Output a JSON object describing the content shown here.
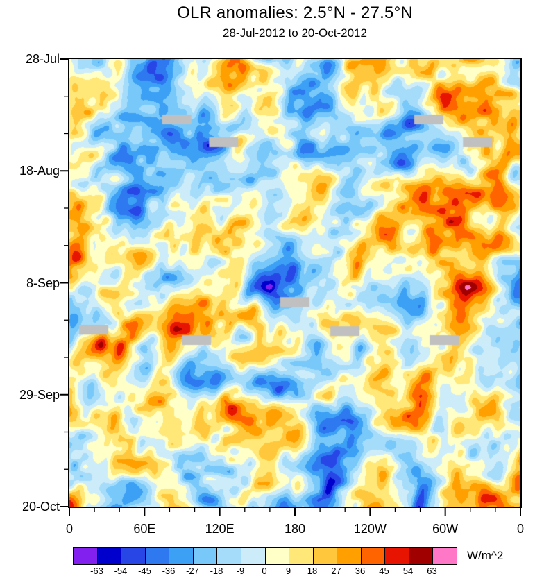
{
  "chart_data": {
    "type": "heatmap",
    "title": "OLR anomalies: 2.5°N - 27.5°N",
    "subtitle": "28-Jul-2012 to 20-Oct-2012",
    "xlabel": "",
    "ylabel": "",
    "x_axis": {
      "tick_labels": [
        "0",
        "60E",
        "120E",
        "180",
        "120W",
        "60W",
        "0"
      ],
      "minor_ticks_between_majors": 2,
      "range_degrees": [
        0,
        360
      ]
    },
    "y_axis": {
      "tick_labels": [
        "28-Jul",
        "18-Aug",
        "8-Sep",
        "29-Sep",
        "20-Oct"
      ],
      "minor_ticks_between_majors": 2,
      "direction": "time increases downward"
    },
    "colorbar": {
      "units": "W/m^2",
      "tick_labels": [
        "-63",
        "-54",
        "-45",
        "-36",
        "-27",
        "-18",
        "-9",
        "0",
        "9",
        "18",
        "27",
        "36",
        "45",
        "54",
        "63"
      ],
      "levels": [
        -63,
        -54,
        -45,
        -36,
        -27,
        -18,
        -9,
        0,
        9,
        18,
        27,
        36,
        45,
        54,
        63
      ],
      "colors": [
        "#8220F0",
        "#0000CD",
        "#2846E6",
        "#2E78F0",
        "#3CA0F5",
        "#78C8FA",
        "#A5DCFA",
        "#CDECFA",
        "#FFFFC8",
        "#FFE878",
        "#FFC83C",
        "#FFA000",
        "#FF6400",
        "#E61400",
        "#A00000",
        "#FF78C8"
      ]
    },
    "missing_data_color": "#C0C0C0",
    "missing_patches_frac": [
      [
        0.238,
        0.135
      ],
      [
        0.342,
        0.186
      ],
      [
        0.797,
        0.135
      ],
      [
        0.905,
        0.186
      ],
      [
        0.5,
        0.543
      ],
      [
        0.054,
        0.605
      ],
      [
        0.282,
        0.628
      ],
      [
        0.611,
        0.608
      ],
      [
        0.831,
        0.628
      ]
    ],
    "field_note": "Filled-contour OLR anomaly field (W/m^2) over longitude (x) and time (y); values span roughly -70 to +70 with most anomalies between -45 and +45."
  }
}
